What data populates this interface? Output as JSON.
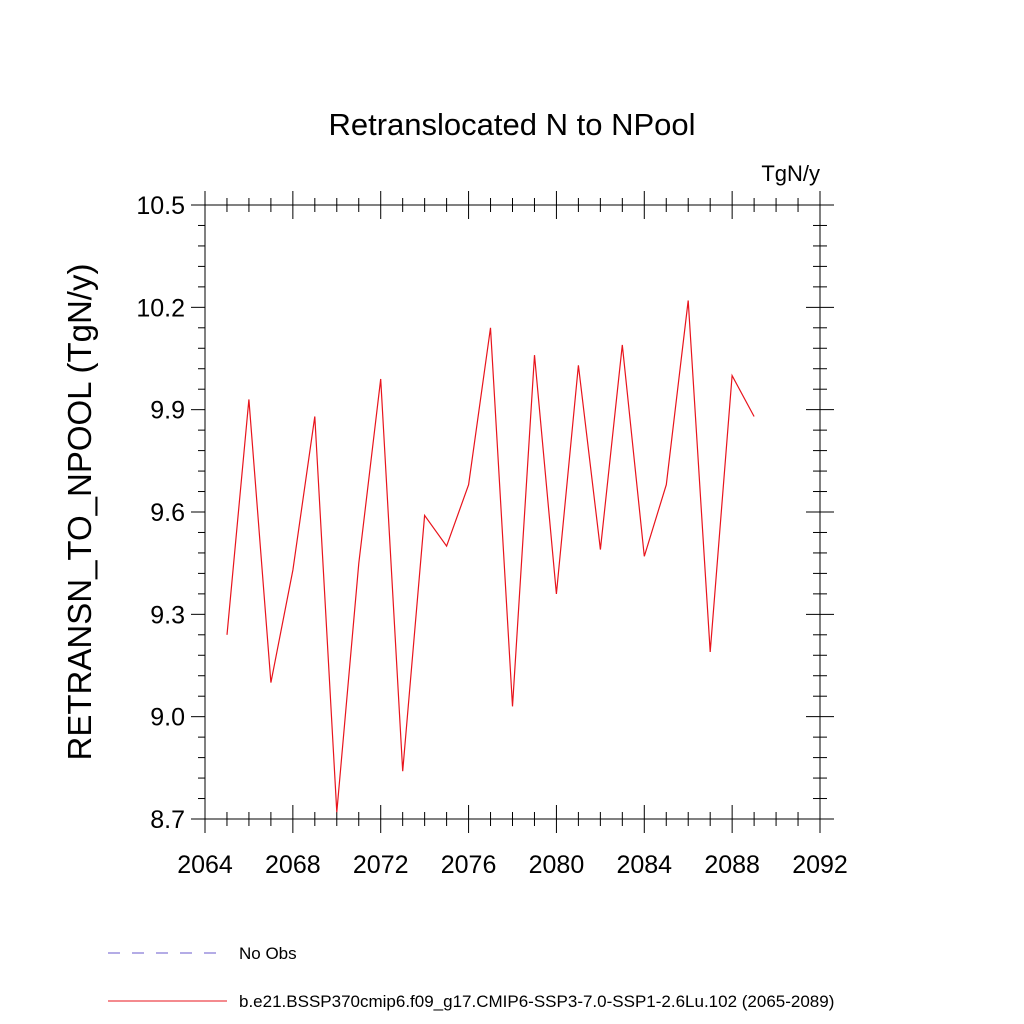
{
  "chart_data": {
    "type": "line",
    "title": "Retranslocated N to NPool",
    "units": "TgN/y",
    "ylabel": "RETRANSN_TO_NPOOL  (TgN/y)",
    "xlabel": "",
    "xlim": [
      2064,
      2092
    ],
    "ylim": [
      8.7,
      10.5
    ],
    "x_ticks": [
      2064,
      2068,
      2072,
      2076,
      2080,
      2084,
      2088,
      2092
    ],
    "y_ticks": [
      8.7,
      9.0,
      9.3,
      9.6,
      9.9,
      10.2,
      10.5
    ],
    "x_tick_labels": [
      "2064",
      "2068",
      "2072",
      "2076",
      "2080",
      "2084",
      "2088",
      "2092"
    ],
    "y_tick_labels": [
      "8.7",
      "9.0",
      "9.3",
      "9.6",
      "9.9",
      "10.2",
      "10.5"
    ],
    "grid": false,
    "legend_position": "bottom",
    "series": [
      {
        "name": "b.e21.BSSP370cmip6.f09_g17.CMIP6-SSP3-7.0-SSP1-2.6Lu.102 (2065-2089)",
        "color": "#e8141c",
        "style": "solid",
        "x": [
          2065,
          2066,
          2067,
          2068,
          2069,
          2070,
          2071,
          2072,
          2073,
          2074,
          2075,
          2076,
          2077,
          2078,
          2079,
          2080,
          2081,
          2082,
          2083,
          2084,
          2085,
          2086,
          2087,
          2088,
          2089
        ],
        "y": [
          9.24,
          9.93,
          9.1,
          9.43,
          9.88,
          8.72,
          9.45,
          9.99,
          8.84,
          9.59,
          9.5,
          9.68,
          10.14,
          9.03,
          10.06,
          9.36,
          10.03,
          9.49,
          10.09,
          9.47,
          9.68,
          10.22,
          9.19,
          10.0,
          9.88
        ]
      }
    ],
    "legend": [
      {
        "label": "No Obs",
        "color": "#6a5acd",
        "style": "dashed"
      },
      {
        "label": "b.e21.BSSP370cmip6.f09_g17.CMIP6-SSP3-7.0-SSP1-2.6Lu.102 (2065-2089)",
        "color": "#e8141c",
        "style": "solid"
      }
    ]
  }
}
